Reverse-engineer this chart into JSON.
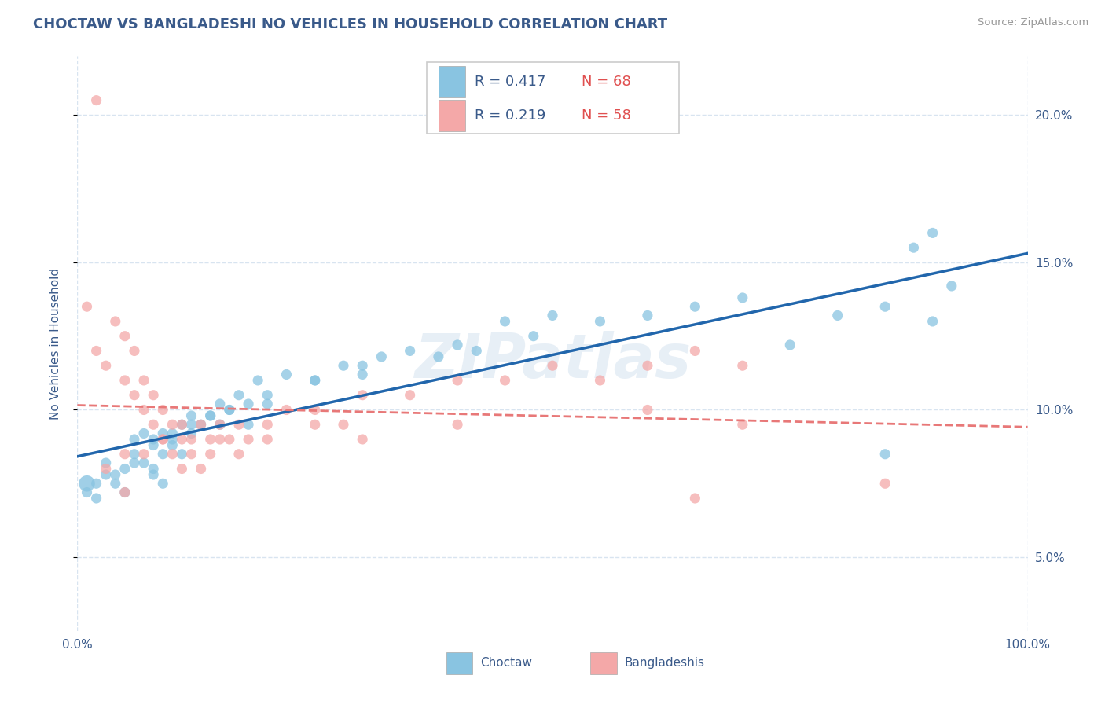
{
  "title": "CHOCTAW VS BANGLADESHI NO VEHICLES IN HOUSEHOLD CORRELATION CHART",
  "source": "Source: ZipAtlas.com",
  "ylabel": "No Vehicles in Household",
  "x_lim": [
    0,
    100
  ],
  "y_lim": [
    2.5,
    22.0
  ],
  "y_ticks": [
    5.0,
    10.0,
    15.0,
    20.0
  ],
  "y_tick_labels": [
    "5.0%",
    "10.0%",
    "15.0%",
    "20.0%"
  ],
  "x_tick_labels": [
    "0.0%",
    "100.0%"
  ],
  "watermark": "ZIPatlas",
  "legend_r1": "R = 0.417",
  "legend_n1": "N = 68",
  "legend_r2": "R = 0.219",
  "legend_n2": "N = 58",
  "choctaw_color": "#89c4e1",
  "bangladeshi_color": "#f4a8a8",
  "choctaw_line_color": "#2166ac",
  "bangladeshi_line_color": "#e87878",
  "title_color": "#3a5a8a",
  "axis_label_color": "#3a5a8a",
  "tick_label_color": "#3a5a8a",
  "source_color": "#999999",
  "watermark_color": "#c5d8ea",
  "grid_color": "#d8e4f0",
  "legend_text_color": "#3a5a8a",
  "legend_n_color": "#e05050",
  "choctaw_scatter_x": [
    1,
    2,
    3,
    3,
    4,
    5,
    5,
    6,
    6,
    7,
    7,
    8,
    8,
    8,
    9,
    9,
    9,
    10,
    10,
    11,
    11,
    12,
    12,
    13,
    14,
    15,
    15,
    16,
    17,
    18,
    19,
    20,
    22,
    25,
    28,
    30,
    32,
    35,
    38,
    40,
    42,
    45,
    48,
    50,
    55,
    60,
    65,
    70,
    75,
    80,
    85,
    90,
    2,
    4,
    6,
    8,
    10,
    12,
    14,
    16,
    18,
    20,
    25,
    30,
    85,
    90,
    88,
    92
  ],
  "choctaw_scatter_y": [
    7.2,
    7.5,
    7.8,
    8.2,
    7.5,
    8.0,
    7.2,
    8.5,
    9.0,
    8.2,
    9.2,
    8.0,
    8.8,
    7.8,
    8.5,
    9.2,
    7.5,
    8.8,
    9.0,
    9.5,
    8.5,
    9.2,
    9.8,
    9.5,
    9.8,
    9.5,
    10.2,
    10.0,
    10.5,
    10.2,
    11.0,
    10.5,
    11.2,
    11.0,
    11.5,
    11.2,
    11.8,
    12.0,
    11.8,
    12.2,
    12.0,
    13.0,
    12.5,
    13.2,
    13.0,
    13.2,
    13.5,
    13.8,
    12.2,
    13.2,
    13.5,
    13.0,
    7.0,
    7.8,
    8.2,
    9.0,
    9.2,
    9.5,
    9.8,
    10.0,
    9.5,
    10.2,
    11.0,
    11.5,
    8.5,
    16.0,
    15.5,
    14.2
  ],
  "bangladeshi_scatter_x": [
    1,
    2,
    3,
    4,
    5,
    5,
    6,
    6,
    7,
    7,
    8,
    8,
    9,
    9,
    10,
    10,
    11,
    11,
    12,
    12,
    13,
    14,
    14,
    15,
    16,
    17,
    18,
    20,
    22,
    25,
    28,
    30,
    35,
    40,
    45,
    50,
    55,
    60,
    65,
    70,
    3,
    5,
    7,
    9,
    11,
    13,
    15,
    17,
    20,
    25,
    30,
    40,
    60,
    70,
    85,
    2,
    5,
    65
  ],
  "bangladeshi_scatter_y": [
    13.5,
    12.0,
    11.5,
    13.0,
    12.5,
    11.0,
    12.0,
    10.5,
    11.0,
    10.0,
    10.5,
    9.5,
    10.0,
    9.0,
    9.5,
    8.5,
    9.0,
    8.0,
    9.0,
    8.5,
    9.5,
    8.5,
    9.0,
    9.5,
    9.0,
    9.5,
    9.0,
    9.5,
    10.0,
    10.0,
    9.5,
    10.5,
    10.5,
    11.0,
    11.0,
    11.5,
    11.0,
    11.5,
    12.0,
    11.5,
    8.0,
    8.5,
    8.5,
    9.0,
    9.5,
    8.0,
    9.0,
    8.5,
    9.0,
    9.5,
    9.0,
    9.5,
    10.0,
    9.5,
    7.5,
    20.5,
    7.2,
    7.0
  ],
  "large_dot_x": 1,
  "large_dot_y": 7.5,
  "large_dot_size": 220
}
